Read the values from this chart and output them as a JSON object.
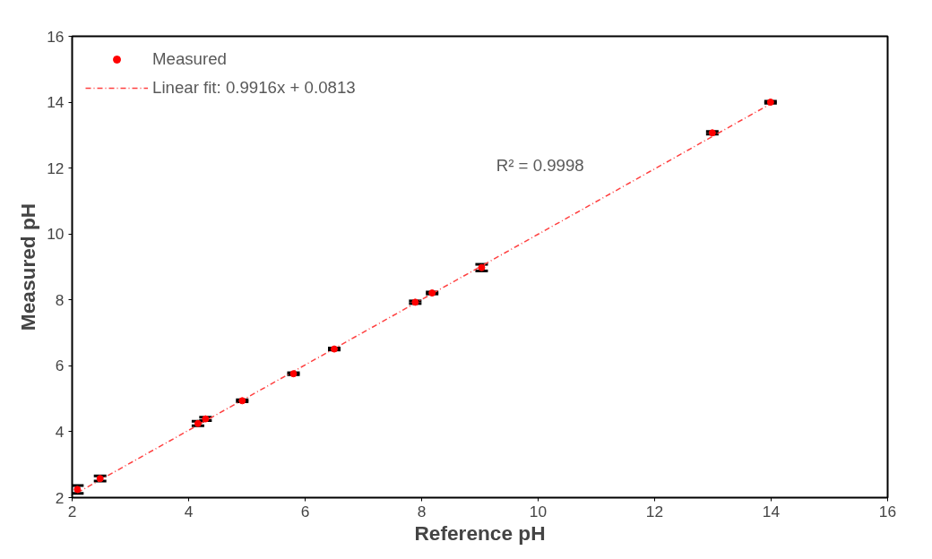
{
  "chart_data": {
    "type": "scatter",
    "xlabel": "Reference pH",
    "ylabel": "Measured pH",
    "xlim": [
      2,
      16
    ],
    "ylim": [
      2,
      16
    ],
    "xticks": [
      2,
      4,
      6,
      8,
      10,
      12,
      14,
      16
    ],
    "yticks": [
      2,
      4,
      6,
      8,
      10,
      12,
      14,
      16
    ],
    "grid": false,
    "legend": "top left",
    "series": [
      {
        "name": "Measured",
        "color": "#ff0000",
        "marker": "circle",
        "x": [
          2.09,
          2.48,
          4.16,
          4.29,
          4.92,
          5.8,
          6.5,
          7.89,
          8.18,
          9.03,
          12.99,
          13.99
        ],
        "values": [
          2.25,
          2.58,
          4.25,
          4.39,
          4.94,
          5.76,
          6.51,
          7.93,
          8.21,
          8.98,
          13.07,
          14.0
        ],
        "errors": [
          0.12,
          0.08,
          0.07,
          0.05,
          0.03,
          0.03,
          0.03,
          0.04,
          0.03,
          0.1,
          0.04,
          0.03
        ]
      },
      {
        "name": "Linear fit: 0.9916x + 0.0813",
        "type": "line",
        "color": "#ff4040",
        "line_style": "dashed",
        "x": [
          2.09,
          13.99
        ],
        "values": [
          2.15,
          13.95
        ]
      }
    ],
    "annotations": [
      "R² = 0.9998"
    ]
  }
}
